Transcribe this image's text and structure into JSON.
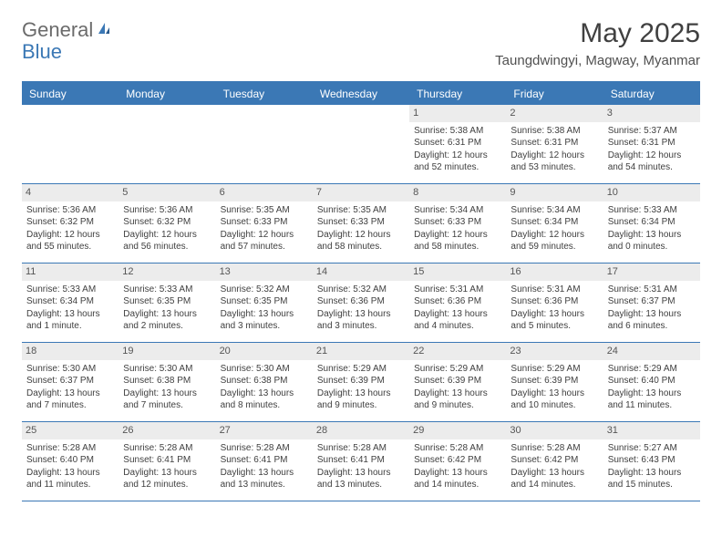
{
  "logo": {
    "part1": "General",
    "part2": "Blue"
  },
  "title": "May 2025",
  "location": "Taungdwingyi, Magway, Myanmar",
  "colors": {
    "header_bg": "#3b78b5",
    "header_text": "#ffffff",
    "daynum_bg": "#ececec",
    "border": "#3b78b5",
    "body_text": "#404040",
    "logo_gray": "#6b6b6b",
    "logo_blue": "#3b78b5"
  },
  "day_headers": [
    "Sunday",
    "Monday",
    "Tuesday",
    "Wednesday",
    "Thursday",
    "Friday",
    "Saturday"
  ],
  "weeks": [
    [
      null,
      null,
      null,
      null,
      {
        "n": "1",
        "sunrise": "5:38 AM",
        "sunset": "6:31 PM",
        "daylight": "12 hours and 52 minutes."
      },
      {
        "n": "2",
        "sunrise": "5:38 AM",
        "sunset": "6:31 PM",
        "daylight": "12 hours and 53 minutes."
      },
      {
        "n": "3",
        "sunrise": "5:37 AM",
        "sunset": "6:31 PM",
        "daylight": "12 hours and 54 minutes."
      }
    ],
    [
      {
        "n": "4",
        "sunrise": "5:36 AM",
        "sunset": "6:32 PM",
        "daylight": "12 hours and 55 minutes."
      },
      {
        "n": "5",
        "sunrise": "5:36 AM",
        "sunset": "6:32 PM",
        "daylight": "12 hours and 56 minutes."
      },
      {
        "n": "6",
        "sunrise": "5:35 AM",
        "sunset": "6:33 PM",
        "daylight": "12 hours and 57 minutes."
      },
      {
        "n": "7",
        "sunrise": "5:35 AM",
        "sunset": "6:33 PM",
        "daylight": "12 hours and 58 minutes."
      },
      {
        "n": "8",
        "sunrise": "5:34 AM",
        "sunset": "6:33 PM",
        "daylight": "12 hours and 58 minutes."
      },
      {
        "n": "9",
        "sunrise": "5:34 AM",
        "sunset": "6:34 PM",
        "daylight": "12 hours and 59 minutes."
      },
      {
        "n": "10",
        "sunrise": "5:33 AM",
        "sunset": "6:34 PM",
        "daylight": "13 hours and 0 minutes."
      }
    ],
    [
      {
        "n": "11",
        "sunrise": "5:33 AM",
        "sunset": "6:34 PM",
        "daylight": "13 hours and 1 minute."
      },
      {
        "n": "12",
        "sunrise": "5:33 AM",
        "sunset": "6:35 PM",
        "daylight": "13 hours and 2 minutes."
      },
      {
        "n": "13",
        "sunrise": "5:32 AM",
        "sunset": "6:35 PM",
        "daylight": "13 hours and 3 minutes."
      },
      {
        "n": "14",
        "sunrise": "5:32 AM",
        "sunset": "6:36 PM",
        "daylight": "13 hours and 3 minutes."
      },
      {
        "n": "15",
        "sunrise": "5:31 AM",
        "sunset": "6:36 PM",
        "daylight": "13 hours and 4 minutes."
      },
      {
        "n": "16",
        "sunrise": "5:31 AM",
        "sunset": "6:36 PM",
        "daylight": "13 hours and 5 minutes."
      },
      {
        "n": "17",
        "sunrise": "5:31 AM",
        "sunset": "6:37 PM",
        "daylight": "13 hours and 6 minutes."
      }
    ],
    [
      {
        "n": "18",
        "sunrise": "5:30 AM",
        "sunset": "6:37 PM",
        "daylight": "13 hours and 7 minutes."
      },
      {
        "n": "19",
        "sunrise": "5:30 AM",
        "sunset": "6:38 PM",
        "daylight": "13 hours and 7 minutes."
      },
      {
        "n": "20",
        "sunrise": "5:30 AM",
        "sunset": "6:38 PM",
        "daylight": "13 hours and 8 minutes."
      },
      {
        "n": "21",
        "sunrise": "5:29 AM",
        "sunset": "6:39 PM",
        "daylight": "13 hours and 9 minutes."
      },
      {
        "n": "22",
        "sunrise": "5:29 AM",
        "sunset": "6:39 PM",
        "daylight": "13 hours and 9 minutes."
      },
      {
        "n": "23",
        "sunrise": "5:29 AM",
        "sunset": "6:39 PM",
        "daylight": "13 hours and 10 minutes."
      },
      {
        "n": "24",
        "sunrise": "5:29 AM",
        "sunset": "6:40 PM",
        "daylight": "13 hours and 11 minutes."
      }
    ],
    [
      {
        "n": "25",
        "sunrise": "5:28 AM",
        "sunset": "6:40 PM",
        "daylight": "13 hours and 11 minutes."
      },
      {
        "n": "26",
        "sunrise": "5:28 AM",
        "sunset": "6:41 PM",
        "daylight": "13 hours and 12 minutes."
      },
      {
        "n": "27",
        "sunrise": "5:28 AM",
        "sunset": "6:41 PM",
        "daylight": "13 hours and 13 minutes."
      },
      {
        "n": "28",
        "sunrise": "5:28 AM",
        "sunset": "6:41 PM",
        "daylight": "13 hours and 13 minutes."
      },
      {
        "n": "29",
        "sunrise": "5:28 AM",
        "sunset": "6:42 PM",
        "daylight": "13 hours and 14 minutes."
      },
      {
        "n": "30",
        "sunrise": "5:28 AM",
        "sunset": "6:42 PM",
        "daylight": "13 hours and 14 minutes."
      },
      {
        "n": "31",
        "sunrise": "5:27 AM",
        "sunset": "6:43 PM",
        "daylight": "13 hours and 15 minutes."
      }
    ]
  ],
  "labels": {
    "sunrise": "Sunrise:",
    "sunset": "Sunset:",
    "daylight": "Daylight:"
  }
}
